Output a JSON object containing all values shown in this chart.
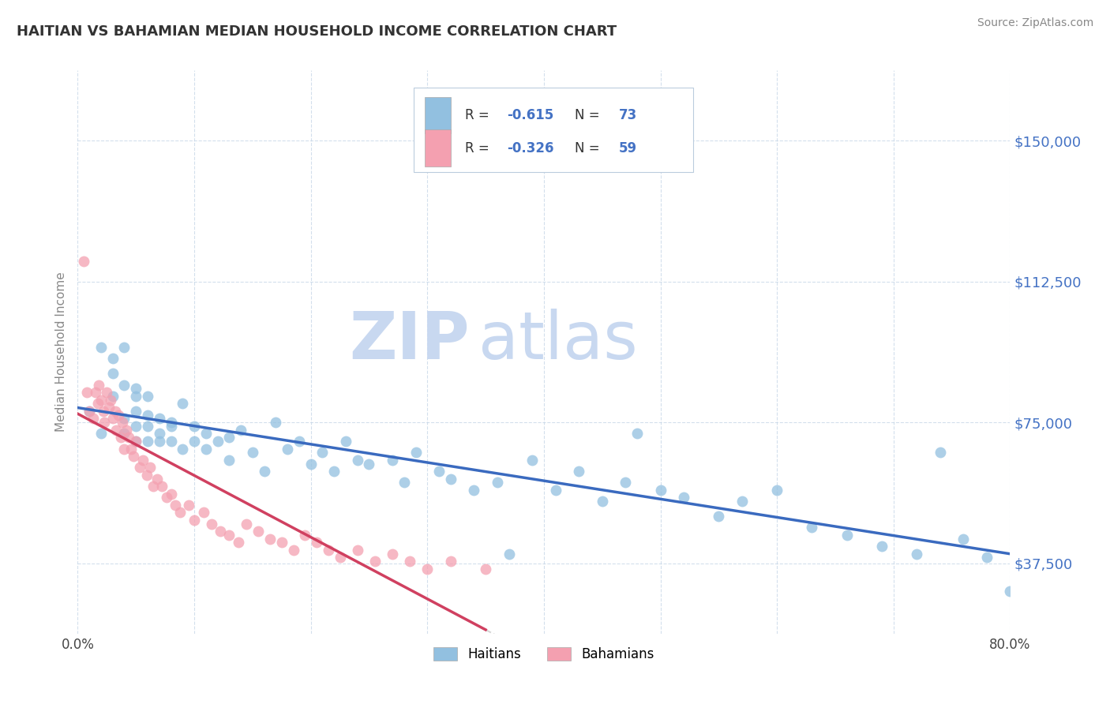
{
  "title": "HAITIAN VS BAHAMIAN MEDIAN HOUSEHOLD INCOME CORRELATION CHART",
  "source": "Source: ZipAtlas.com",
  "ylabel": "Median Household Income",
  "xlim": [
    0.0,
    0.8
  ],
  "ylim": [
    18750,
    168750
  ],
  "yticks": [
    37500,
    75000,
    112500,
    150000
  ],
  "ytick_labels": [
    "$37,500",
    "$75,000",
    "$112,500",
    "$150,000"
  ],
  "xticks": [
    0.0,
    0.1,
    0.2,
    0.3,
    0.4,
    0.5,
    0.6,
    0.7,
    0.8
  ],
  "xtick_labels": [
    "0.0%",
    "",
    "",
    "",
    "",
    "",
    "",
    "",
    "80.0%"
  ],
  "haitian_color": "#92c0e0",
  "bahamian_color": "#f4a0b0",
  "trend_haitian_color": "#3a6abf",
  "trend_bahamian_color": "#d04060",
  "watermark_zip": "ZIP",
  "watermark_atlas": "atlas",
  "watermark_color": "#c8d8f0",
  "haitian_x": [
    0.01,
    0.02,
    0.02,
    0.03,
    0.03,
    0.03,
    0.04,
    0.04,
    0.04,
    0.04,
    0.05,
    0.05,
    0.05,
    0.05,
    0.05,
    0.06,
    0.06,
    0.06,
    0.06,
    0.07,
    0.07,
    0.07,
    0.08,
    0.08,
    0.08,
    0.09,
    0.09,
    0.1,
    0.1,
    0.11,
    0.11,
    0.12,
    0.13,
    0.13,
    0.14,
    0.15,
    0.16,
    0.17,
    0.18,
    0.19,
    0.2,
    0.21,
    0.22,
    0.23,
    0.24,
    0.25,
    0.27,
    0.28,
    0.29,
    0.31,
    0.32,
    0.34,
    0.36,
    0.37,
    0.39,
    0.41,
    0.43,
    0.45,
    0.47,
    0.48,
    0.5,
    0.52,
    0.55,
    0.57,
    0.6,
    0.63,
    0.66,
    0.69,
    0.72,
    0.74,
    0.76,
    0.78,
    0.8
  ],
  "haitian_y": [
    78000,
    95000,
    72000,
    88000,
    82000,
    92000,
    95000,
    85000,
    76000,
    72000,
    82000,
    78000,
    74000,
    70000,
    84000,
    77000,
    74000,
    70000,
    82000,
    76000,
    72000,
    70000,
    74000,
    70000,
    75000,
    68000,
    80000,
    74000,
    70000,
    72000,
    68000,
    70000,
    65000,
    71000,
    73000,
    67000,
    62000,
    75000,
    68000,
    70000,
    64000,
    67000,
    62000,
    70000,
    65000,
    64000,
    65000,
    59000,
    67000,
    62000,
    60000,
    57000,
    59000,
    40000,
    65000,
    57000,
    62000,
    54000,
    59000,
    72000,
    57000,
    55000,
    50000,
    54000,
    57000,
    47000,
    45000,
    42000,
    40000,
    67000,
    44000,
    39000,
    30000
  ],
  "bahamian_x": [
    0.005,
    0.008,
    0.01,
    0.013,
    0.015,
    0.017,
    0.018,
    0.02,
    0.022,
    0.023,
    0.025,
    0.027,
    0.028,
    0.03,
    0.032,
    0.033,
    0.035,
    0.037,
    0.038,
    0.04,
    0.042,
    0.044,
    0.046,
    0.048,
    0.05,
    0.053,
    0.056,
    0.059,
    0.062,
    0.065,
    0.068,
    0.072,
    0.076,
    0.08,
    0.084,
    0.088,
    0.095,
    0.1,
    0.108,
    0.115,
    0.122,
    0.13,
    0.138,
    0.145,
    0.155,
    0.165,
    0.175,
    0.185,
    0.195,
    0.205,
    0.215,
    0.225,
    0.24,
    0.255,
    0.27,
    0.285,
    0.3,
    0.32,
    0.35
  ],
  "bahamian_y": [
    118000,
    83000,
    78000,
    76000,
    83000,
    80000,
    85000,
    81000,
    78000,
    75000,
    83000,
    79000,
    81000,
    76000,
    78000,
    73000,
    77000,
    71000,
    75000,
    68000,
    73000,
    71000,
    68000,
    66000,
    70000,
    63000,
    65000,
    61000,
    63000,
    58000,
    60000,
    58000,
    55000,
    56000,
    53000,
    51000,
    53000,
    49000,
    51000,
    48000,
    46000,
    45000,
    43000,
    48000,
    46000,
    44000,
    43000,
    41000,
    45000,
    43000,
    41000,
    39000,
    41000,
    38000,
    40000,
    38000,
    36000,
    38000,
    36000
  ]
}
